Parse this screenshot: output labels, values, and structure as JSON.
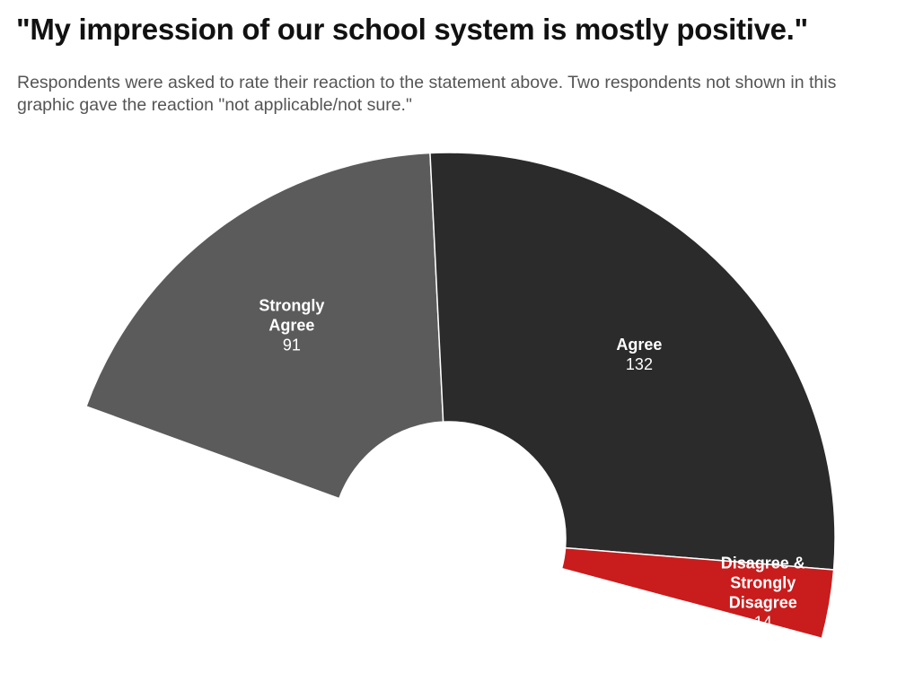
{
  "chart_data": {
    "type": "pie",
    "variant": "half-donut",
    "title": "\"My impression of our school system is mostly positive.\"",
    "subtitle": "Respondents were asked to rate their reaction to the statement above. Two respondents not shown in this graphic gave the reaction \"not applicable/not sure.\"",
    "slices": [
      {
        "label_lines": [
          "Strongly",
          "Agree"
        ],
        "value": 91,
        "color": "#5b5b5b"
      },
      {
        "label_lines": [
          "Agree"
        ],
        "value": 132,
        "color": "#2b2b2b"
      },
      {
        "label_lines": [
          "Disagree &",
          "Strongly",
          "Disagree"
        ],
        "value": 14,
        "color": "#c91c1c"
      }
    ],
    "label_color": "#ffffff",
    "legend": "none"
  }
}
